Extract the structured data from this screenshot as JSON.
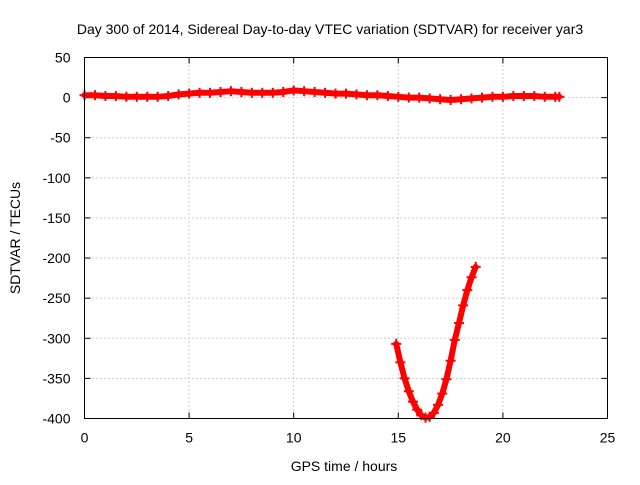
{
  "chart_data": {
    "type": "scatter",
    "title": "Day 300 of 2014, Sidereal Day-to-day VTEC variation (SDTVAR) for receiver yar3",
    "xlabel": "GPS time / hours",
    "ylabel": "SDTVAR / TECUs",
    "xlim": [
      0,
      25
    ],
    "ylim": [
      -400,
      50
    ],
    "xticks": [
      0,
      5,
      10,
      15,
      20,
      25
    ],
    "yticks": [
      50,
      0,
      -50,
      -100,
      -150,
      -200,
      -250,
      -300,
      -350,
      -400
    ],
    "grid": true,
    "legend": "none",
    "marker": "plus",
    "series_color": "#ff0000",
    "series": [
      {
        "values": [
          [
            0.0,
            3
          ],
          [
            0.5,
            3
          ],
          [
            1.0,
            2
          ],
          [
            1.5,
            2
          ],
          [
            2.0,
            1
          ],
          [
            2.5,
            1
          ],
          [
            3.0,
            1
          ],
          [
            3.5,
            1
          ],
          [
            4.0,
            2
          ],
          [
            4.5,
            4
          ],
          [
            5.0,
            5
          ],
          [
            5.5,
            6
          ],
          [
            6.0,
            6
          ],
          [
            6.5,
            7
          ],
          [
            7.0,
            8
          ],
          [
            7.5,
            7
          ],
          [
            8.0,
            6
          ],
          [
            8.5,
            6
          ],
          [
            9.0,
            6
          ],
          [
            9.5,
            7
          ],
          [
            10.0,
            9
          ],
          [
            10.5,
            8
          ],
          [
            11.0,
            7
          ],
          [
            11.5,
            6
          ],
          [
            12.0,
            5
          ],
          [
            12.5,
            5
          ],
          [
            13.0,
            4
          ],
          [
            13.5,
            3
          ],
          [
            14.0,
            3
          ],
          [
            14.5,
            2
          ],
          [
            15.0,
            1
          ],
          [
            15.5,
            0
          ],
          [
            16.0,
            0
          ],
          [
            16.5,
            -1
          ],
          [
            17.0,
            -2
          ],
          [
            17.5,
            -3
          ],
          [
            18.0,
            -2
          ],
          [
            18.5,
            -1
          ],
          [
            19.0,
            0
          ],
          [
            19.5,
            1
          ],
          [
            20.0,
            1
          ],
          [
            20.5,
            2
          ],
          [
            21.0,
            2
          ],
          [
            21.5,
            2
          ],
          [
            22.0,
            1
          ],
          [
            22.5,
            1
          ],
          [
            22.7,
            1
          ]
        ]
      },
      {
        "values": [
          [
            14.9,
            -307
          ],
          [
            15.1,
            -330
          ],
          [
            15.3,
            -350
          ],
          [
            15.5,
            -366
          ],
          [
            15.7,
            -379
          ],
          [
            15.9,
            -389
          ],
          [
            16.1,
            -396
          ],
          [
            16.3,
            -399
          ],
          [
            16.5,
            -398
          ],
          [
            16.7,
            -393
          ],
          [
            16.9,
            -383
          ],
          [
            17.1,
            -369
          ],
          [
            17.3,
            -351
          ],
          [
            17.5,
            -328
          ],
          [
            17.7,
            -302
          ],
          [
            17.9,
            -281
          ],
          [
            18.1,
            -259
          ],
          [
            18.3,
            -240
          ],
          [
            18.5,
            -224
          ],
          [
            18.7,
            -211
          ]
        ]
      }
    ]
  }
}
